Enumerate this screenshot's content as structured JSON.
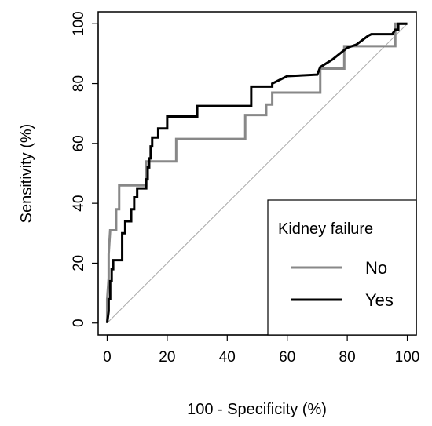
{
  "chart_data": {
    "type": "line",
    "title": "",
    "xlabel": "100 - Specificity (%)",
    "ylabel": "Sensitivity (%)",
    "xlim": [
      -3,
      103
    ],
    "ylim": [
      -4,
      104
    ],
    "x_ticks": [
      0,
      20,
      40,
      60,
      80,
      100
    ],
    "y_ticks": [
      0,
      20,
      40,
      60,
      80,
      100
    ],
    "grid": false,
    "legend": {
      "title": "Kidney failure",
      "position": "bottom-right"
    },
    "reference_line": {
      "from": [
        0,
        0
      ],
      "to": [
        100,
        100
      ],
      "color": "#aaaaaa"
    },
    "series": [
      {
        "name": "No",
        "color": "#888888",
        "points": [
          [
            0,
            0
          ],
          [
            0,
            8
          ],
          [
            0.5,
            15
          ],
          [
            0.5,
            23
          ],
          [
            1,
            31
          ],
          [
            3,
            31
          ],
          [
            3,
            38
          ],
          [
            4,
            38
          ],
          [
            4,
            46
          ],
          [
            13,
            46
          ],
          [
            13,
            54
          ],
          [
            23,
            54
          ],
          [
            23,
            61.5
          ],
          [
            46,
            61.5
          ],
          [
            46,
            69.5
          ],
          [
            53,
            69.5
          ],
          [
            53,
            73
          ],
          [
            55,
            73
          ],
          [
            55,
            77
          ],
          [
            71,
            77
          ],
          [
            71,
            85
          ],
          [
            79,
            85
          ],
          [
            79,
            92.5
          ],
          [
            96,
            92.5
          ],
          [
            96,
            100
          ],
          [
            100,
            100
          ]
        ]
      },
      {
        "name": "Yes",
        "color": "#000000",
        "points": [
          [
            0,
            0
          ],
          [
            0.5,
            4
          ],
          [
            0.5,
            8
          ],
          [
            1,
            8
          ],
          [
            1,
            14
          ],
          [
            1.5,
            14
          ],
          [
            1.5,
            18
          ],
          [
            2,
            18
          ],
          [
            2,
            21
          ],
          [
            5,
            21
          ],
          [
            5,
            30
          ],
          [
            6,
            30
          ],
          [
            6,
            34
          ],
          [
            8,
            34
          ],
          [
            8,
            38
          ],
          [
            9,
            38
          ],
          [
            9,
            42
          ],
          [
            10,
            42
          ],
          [
            10,
            45
          ],
          [
            13,
            45
          ],
          [
            13,
            48
          ],
          [
            13.5,
            48
          ],
          [
            13.5,
            52
          ],
          [
            14,
            52
          ],
          [
            14,
            55
          ],
          [
            14.5,
            55
          ],
          [
            14.5,
            59
          ],
          [
            15,
            59
          ],
          [
            15,
            62
          ],
          [
            17,
            62
          ],
          [
            17,
            65
          ],
          [
            20,
            65
          ],
          [
            20,
            69
          ],
          [
            30,
            69
          ],
          [
            30,
            72.5
          ],
          [
            48,
            72.5
          ],
          [
            48,
            79
          ],
          [
            55,
            79
          ],
          [
            55,
            80
          ],
          [
            60,
            82.5
          ],
          [
            70,
            83
          ],
          [
            71,
            85.5
          ],
          [
            75,
            88
          ],
          [
            80,
            92
          ],
          [
            83,
            93
          ],
          [
            87,
            96
          ],
          [
            88,
            96.5
          ],
          [
            95,
            96.5
          ],
          [
            96,
            98
          ],
          [
            97,
            98
          ],
          [
            97,
            100
          ],
          [
            100,
            100
          ]
        ]
      }
    ]
  }
}
